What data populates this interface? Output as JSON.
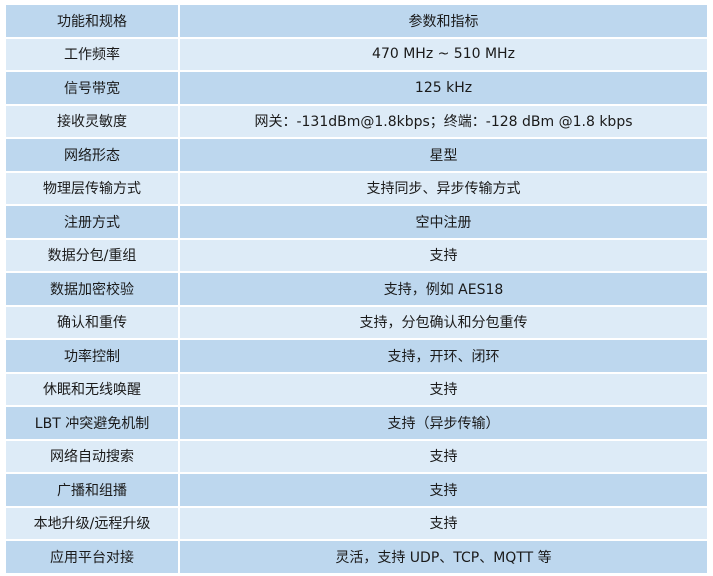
{
  "header": {
    "feature": "功能和规格",
    "value": "参数和指标"
  },
  "rows": [
    {
      "feature": "工作频率",
      "value": "470 MHz ~ 510 MHz"
    },
    {
      "feature": "信号带宽",
      "value": "125 kHz"
    },
    {
      "feature": "接收灵敏度",
      "value": "网关：-131dBm@1.8kbps；终端：-128 dBm @1.8 kbps"
    },
    {
      "feature": "网络形态",
      "value": "星型"
    },
    {
      "feature": "物理层传输方式",
      "value": "支持同步、异步传输方式"
    },
    {
      "feature": "注册方式",
      "value": "空中注册"
    },
    {
      "feature": "数据分包/重组",
      "value": "支持"
    },
    {
      "feature": "数据加密校验",
      "value": "支持，例如 AES18"
    },
    {
      "feature": "确认和重传",
      "value": "支持，分包确认和分包重传"
    },
    {
      "feature": "功率控制",
      "value": "支持，开环、闭环"
    },
    {
      "feature": "休眠和无线唤醒",
      "value": "支持"
    },
    {
      "feature": "LBT 冲突避免机制",
      "value": "支持（异步传输）"
    },
    {
      "feature": "网络自动搜索",
      "value": "支持"
    },
    {
      "feature": "广播和组播",
      "value": "支持"
    },
    {
      "feature": "本地升级/远程升级",
      "value": "支持"
    },
    {
      "feature": "应用平台对接",
      "value": "灵活，支持 UDP、TCP、MQTT 等"
    }
  ],
  "colors": {
    "row_dark": "#bdd7ee",
    "row_light": "#ddebf7"
  }
}
